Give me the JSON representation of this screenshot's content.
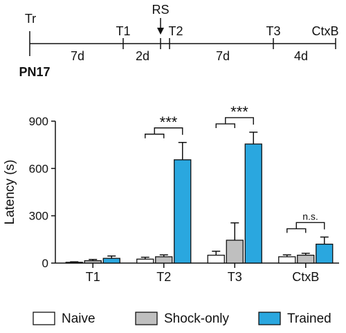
{
  "timeline": {
    "start_marker": "Tr",
    "start_label": "PN17",
    "event_label": "RS",
    "markers": [
      "T1",
      "T2",
      "T3",
      "CtxB"
    ],
    "intervals": [
      "7d",
      "2d",
      "7d",
      "4d"
    ]
  },
  "chart_data": {
    "type": "bar",
    "ylabel": "Latency (s)",
    "xlabel": "",
    "ylim": [
      0,
      900
    ],
    "yticks": [
      0,
      300,
      600,
      900
    ],
    "categories": [
      "T1",
      "T2",
      "T3",
      "CtxB"
    ],
    "grid": false,
    "legend_position": "bottom",
    "series": [
      {
        "name": "Naive",
        "color": "#ffffff",
        "values": [
          5,
          25,
          50,
          40
        ],
        "errors": [
          3,
          12,
          25,
          12
        ]
      },
      {
        "name": "Shock-only",
        "color": "#bfbfbf",
        "values": [
          15,
          40,
          145,
          50
        ],
        "errors": [
          8,
          12,
          110,
          12
        ]
      },
      {
        "name": "Trained",
        "color": "#2aa7df",
        "values": [
          30,
          655,
          755,
          120
        ],
        "errors": [
          15,
          110,
          75,
          45
        ]
      }
    ],
    "annotations": [
      {
        "category": "T2",
        "text": "***"
      },
      {
        "category": "T3",
        "text": "***"
      },
      {
        "category": "CtxB",
        "text": "n.s."
      }
    ]
  }
}
